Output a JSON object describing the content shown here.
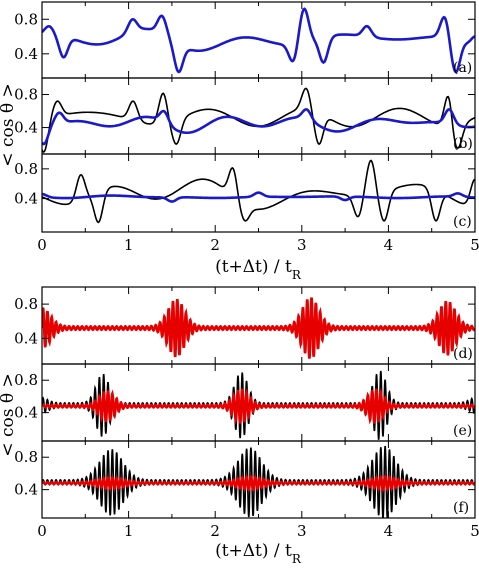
{
  "figure": {
    "ylabel": "< cos θ >",
    "xlabel_top": "(t+Δt) / t_R",
    "xlabel_bottom": "(t+Δt) / t_R"
  },
  "chart_data": [
    {
      "type": "line",
      "panel": "a",
      "group": "top",
      "xlim": [
        0,
        5
      ],
      "ylim": [
        0.12,
        1.0
      ],
      "yticks": [
        0.4,
        0.8
      ],
      "series": [
        {
          "color": "#1a1acc",
          "kind": "smooth",
          "base": 0.56,
          "amp": 0.13,
          "seed": 1,
          "peaks": [
            [
              0.08,
              0.72
            ],
            [
              0.25,
              0.36
            ],
            [
              1.05,
              0.8
            ],
            [
              1.38,
              0.84
            ],
            [
              1.58,
              0.19
            ],
            [
              2.9,
              0.3
            ],
            [
              3.03,
              0.92
            ],
            [
              3.25,
              0.3
            ],
            [
              3.75,
              0.72
            ],
            [
              4.65,
              0.84
            ],
            [
              4.78,
              0.19
            ],
            [
              5.0,
              0.6
            ]
          ]
        }
      ]
    },
    {
      "type": "line",
      "panel": "b",
      "group": "top",
      "xlim": [
        0,
        5
      ],
      "ylim": [
        0.08,
        1.0
      ],
      "yticks": [
        0.4,
        0.8
      ],
      "series": [
        {
          "color": "#000000",
          "kind": "smooth",
          "base": 0.52,
          "amp": 0.14,
          "seed": 2,
          "peaks": [
            [
              0.02,
              0.1
            ],
            [
              0.18,
              0.72
            ],
            [
              1.05,
              0.72
            ],
            [
              1.4,
              0.82
            ],
            [
              1.55,
              0.2
            ],
            [
              3.05,
              0.88
            ],
            [
              3.2,
              0.2
            ],
            [
              4.7,
              0.84
            ],
            [
              4.8,
              0.15
            ]
          ]
        },
        {
          "color": "#1a1acc",
          "kind": "smooth",
          "base": 0.45,
          "amp": 0.08,
          "seed": 3,
          "peaks": [
            [
              0.02,
              0.2
            ],
            [
              0.2,
              0.58
            ],
            [
              1.4,
              0.6
            ],
            [
              3.05,
              0.62
            ],
            [
              4.7,
              0.62
            ]
          ]
        }
      ]
    },
    {
      "type": "line",
      "panel": "c",
      "group": "top",
      "xlim": [
        0,
        5
      ],
      "ylim": [
        -0.05,
        1.0
      ],
      "yticks": [
        0.4,
        0.8
      ],
      "series": [
        {
          "color": "#000000",
          "kind": "smooth",
          "base": 0.46,
          "amp": 0.2,
          "seed": 4,
          "peaks": [
            [
              0.45,
              0.72
            ],
            [
              0.65,
              0.08
            ],
            [
              2.2,
              0.82
            ],
            [
              2.35,
              0.1
            ],
            [
              3.65,
              0.15
            ],
            [
              3.8,
              0.92
            ],
            [
              3.95,
              0.1
            ],
            [
              4.55,
              0.1
            ],
            [
              5.0,
              0.66
            ]
          ]
        },
        {
          "color": "#1a1acc",
          "kind": "smooth",
          "base": 0.42,
          "amp": 0.025,
          "seed": 5,
          "peaks": [
            [
              0.0,
              0.46
            ],
            [
              1.5,
              0.36
            ],
            [
              2.5,
              0.48
            ],
            [
              3.5,
              0.38
            ],
            [
              4.8,
              0.47
            ]
          ]
        }
      ]
    },
    {
      "type": "line",
      "panel": "d",
      "group": "bottom",
      "xlim": [
        0,
        5
      ],
      "ylim": [
        0.1,
        1.0
      ],
      "yticks": [
        0.4,
        0.8
      ],
      "series": [
        {
          "color": "#e60000",
          "kind": "burst",
          "base": 0.52,
          "ripple": 0.02,
          "freq": 20,
          "bursts": [
            [
              0.0,
              0.2,
              0.22
            ],
            [
              1.55,
              0.2,
              0.32
            ],
            [
              3.1,
              0.2,
              0.34
            ],
            [
              4.68,
              0.2,
              0.3
            ]
          ]
        }
      ]
    },
    {
      "type": "line",
      "panel": "e",
      "group": "bottom",
      "xlim": [
        0,
        5
      ],
      "ylim": [
        0.05,
        1.0
      ],
      "yticks": [
        0.4,
        0.8
      ],
      "series": [
        {
          "color": "#000000",
          "kind": "burst",
          "base": 0.49,
          "ripple": 0.03,
          "freq": 20,
          "bursts": [
            [
              0.7,
              0.16,
              0.36
            ],
            [
              2.3,
              0.16,
              0.38
            ],
            [
              3.9,
              0.16,
              0.4
            ],
            [
              0.0,
              0.15,
              0.06
            ],
            [
              5.0,
              0.15,
              0.06
            ]
          ]
        },
        {
          "color": "#e60000",
          "kind": "burst",
          "base": 0.48,
          "ripple": 0.015,
          "freq": 20,
          "bursts": [
            [
              0.75,
              0.18,
              0.18
            ],
            [
              2.3,
              0.18,
              0.2
            ],
            [
              3.85,
              0.18,
              0.2
            ]
          ]
        }
      ]
    },
    {
      "type": "line",
      "panel": "f",
      "group": "bottom",
      "xlim": [
        0,
        5
      ],
      "ylim": [
        0.05,
        1.0
      ],
      "yticks": [
        0.4,
        0.8
      ],
      "series": [
        {
          "color": "#000000",
          "kind": "burst",
          "base": 0.49,
          "ripple": 0.03,
          "freq": 20,
          "bursts": [
            [
              0.8,
              0.28,
              0.38
            ],
            [
              2.4,
              0.28,
              0.4
            ],
            [
              3.95,
              0.28,
              0.42
            ]
          ]
        },
        {
          "color": "#e60000",
          "kind": "burst",
          "base": 0.48,
          "ripple": 0.01,
          "freq": 20,
          "bursts": [
            [
              0.8,
              0.3,
              0.06
            ],
            [
              2.4,
              0.3,
              0.07
            ],
            [
              3.95,
              0.3,
              0.07
            ]
          ]
        }
      ]
    }
  ],
  "xticks": [
    0,
    1,
    2,
    3,
    4,
    5
  ]
}
